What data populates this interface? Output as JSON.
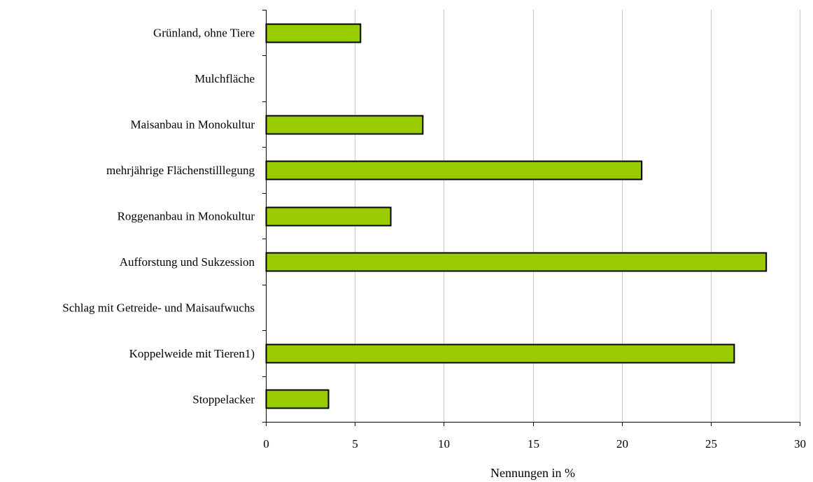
{
  "chart_data": {
    "type": "bar",
    "orientation": "horizontal",
    "categories": [
      "Grünland, ohne Tiere",
      "Mulchfläche",
      "Maisanbau in Monokultur",
      "mehrjährige Flächenstilllegung",
      "Roggenanbau in Monokultur",
      "Aufforstung und Sukzession",
      "Schlag mit Getreide- und Maisaufwuchs",
      "Koppelweide mit Tieren1)",
      "Stoppelacker"
    ],
    "values": [
      5.3,
      0,
      8.8,
      21.1,
      7.0,
      28.1,
      0,
      26.3,
      3.5
    ],
    "xlabel": "Nennungen in %",
    "xlim": [
      0,
      30
    ],
    "xticks": [
      0,
      5,
      10,
      15,
      20,
      25,
      30
    ],
    "grid": "vertical",
    "legend": "none",
    "bar_color": "#99cc00",
    "bar_edge_color": "#000000"
  }
}
